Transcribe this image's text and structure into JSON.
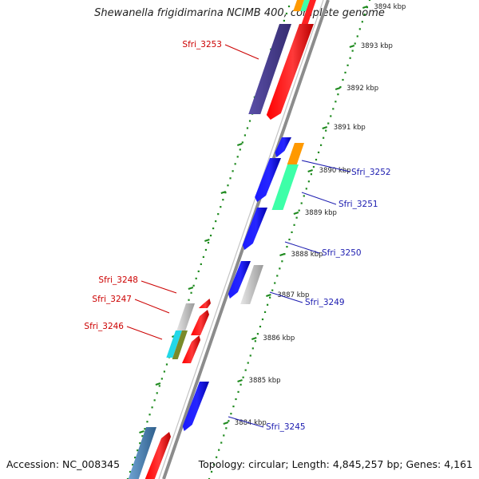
{
  "title": "Shewanella frigidimarina NCIMB 400, complete genome",
  "accession": "Accession: NC_008345",
  "summary": "Topology: circular; Length: 4,845,257 bp; Genes: 4,161",
  "ticks": [
    "3894 kbp",
    "3893 kbp",
    "3892 kbp",
    "3891 kbp",
    "3890 kbp",
    "3889 kbp",
    "3888 kbp",
    "3887 kbp",
    "3886 kbp",
    "3885 kbp",
    "3884 kbp"
  ],
  "labels_plus": [
    "Sfri_3253",
    "Sfri_3248",
    "Sfri_3247",
    "Sfri_3246"
  ],
  "labels_minus": [
    "Sfri_3252",
    "Sfri_3251",
    "Sfri_3250",
    "Sfri_3249",
    "Sfri_3245"
  ],
  "colors": {
    "plus_label": "#cc0000",
    "minus_label": "#1c1cb0",
    "backbone": "#8c8c8c",
    "dots": "#1e8a1e",
    "gene_red": "#ff0000",
    "gene_blue": "#0000ee",
    "gene_navy": "#4a3f8f",
    "gene_orange": "#ff9900",
    "gene_green": "#3dffa8",
    "gene_gray": "#c8c8c8",
    "gene_cyan": "#22d8e8",
    "gene_olive": "#7a8a2a",
    "gene_steel": "#4a82b4"
  }
}
